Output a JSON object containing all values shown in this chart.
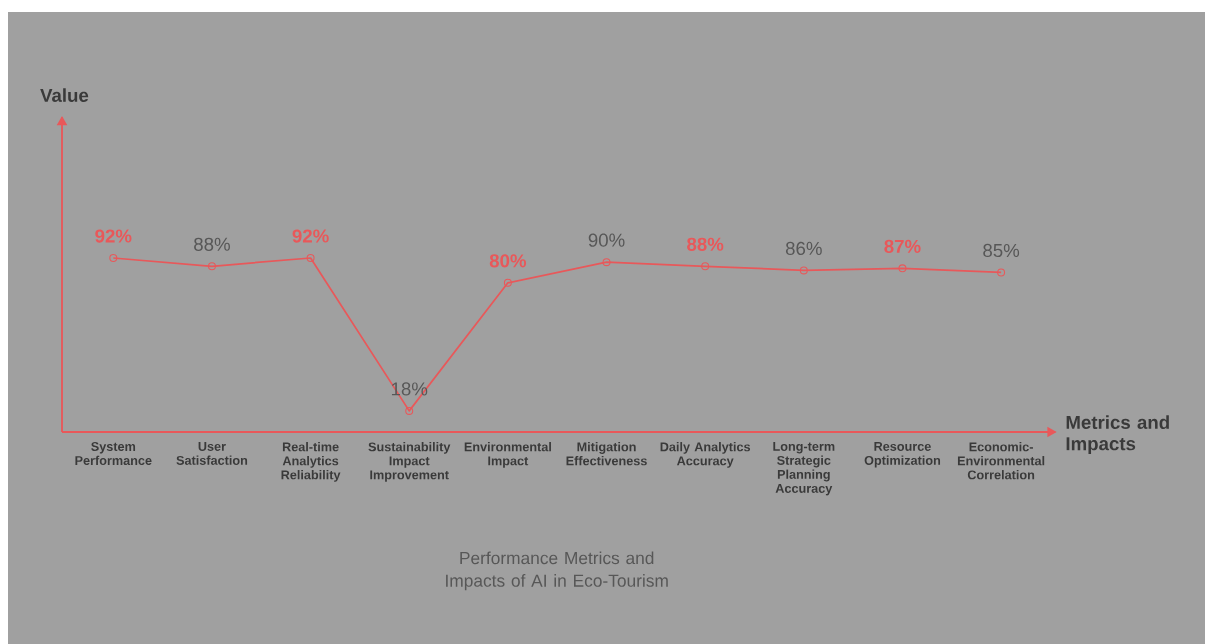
{
  "chart_data": {
    "type": "line",
    "title": "Performance Metrics and Impacts of AI in Eco-Tourism",
    "xlabel": "Metrics and Impacts",
    "annotations": [
      "Value"
    ],
    "categories": [
      "System Performance",
      "User Satisfaction",
      "Real-time Analytics Reliability",
      "Sustainability Impact Improvement",
      "Environmental Impact",
      "Mitigation Effectiveness",
      "Daily Analytics Accuracy",
      "Long-term Strategic Planning Accuracy",
      "Resource Optimization",
      "Economic-Environmental Correlation"
    ],
    "values": [
      92,
      88,
      92,
      18,
      80,
      90,
      88,
      86,
      87,
      85
    ],
    "value_labels": [
      "92%",
      "88%",
      "92%",
      "18%",
      "80%",
      "90%",
      "88%",
      "86%",
      "87%",
      "85%"
    ],
    "color": "#e8585a",
    "marker": "circle",
    "tick_labels": "x",
    "grid": false
  }
}
